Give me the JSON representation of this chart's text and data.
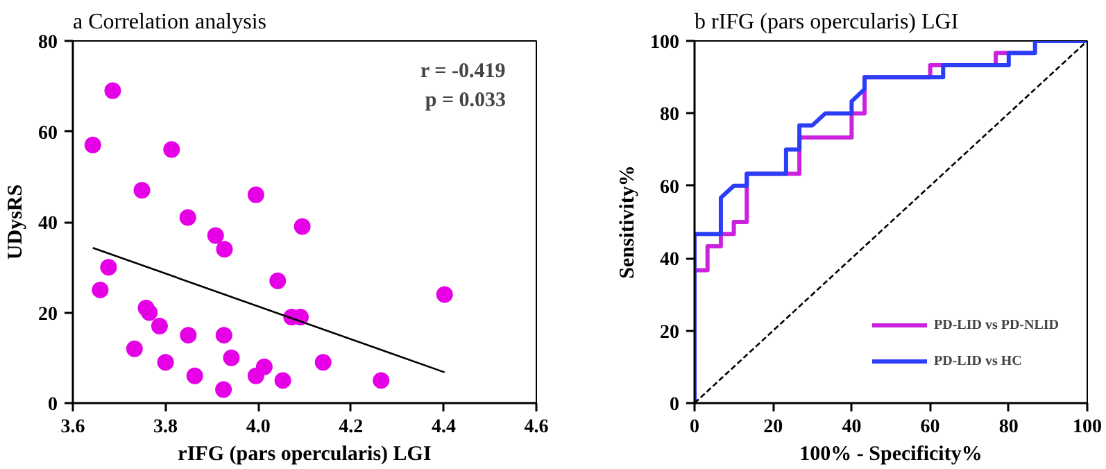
{
  "chart_data": [
    {
      "type": "scatter",
      "title": "a Correlation analysis",
      "xlabel": "rIFG (pars opercularis) LGI",
      "ylabel": "UDysRS",
      "xlim": [
        3.6,
        4.6
      ],
      "ylim": [
        0,
        80
      ],
      "xticks": [
        {
          "value": 3.6,
          "label": "3.6"
        },
        {
          "value": 3.8,
          "label": "3.8"
        },
        {
          "value": 4.0,
          "label": "4.0"
        },
        {
          "value": 4.2,
          "label": "4.2"
        },
        {
          "value": 4.4,
          "label": "4.4"
        },
        {
          "value": 4.6,
          "label": "4.6"
        }
      ],
      "yticks": [
        0,
        20,
        40,
        60,
        80
      ],
      "grid": false,
      "marker": "circle",
      "annotations": [
        "r = -0.419",
        "p = 0.033"
      ],
      "series": [
        {
          "type": "scatter",
          "color": "#e600e6",
          "x": [
            3.643,
            3.686,
            3.813,
            3.749,
            3.848,
            3.995,
            3.908,
            3.927,
            4.095,
            3.677,
            3.659,
            4.042,
            4.402,
            3.758,
            3.765,
            3.787,
            4.072,
            4.091,
            3.733,
            3.849,
            3.926,
            3.942,
            3.8,
            3.863,
            3.925,
            3.995,
            4.013,
            4.053,
            4.14,
            4.265
          ],
          "values": [
            57,
            69,
            56,
            47,
            41,
            46,
            37,
            34,
            39,
            30,
            25,
            27,
            24,
            21,
            20,
            17,
            19,
            19,
            12,
            15,
            15,
            10,
            9,
            6,
            3,
            6,
            8,
            5,
            9,
            5
          ]
        },
        {
          "type": "line",
          "color": "#000000",
          "marker": "none",
          "x": [
            3.643,
            4.402
          ],
          "values": [
            34.3,
            6.8
          ]
        }
      ]
    },
    {
      "type": "line",
      "title": "b rIFG (pars opercularis) LGI",
      "xlabel": "100% - Specificity%",
      "ylabel": "Sensitivity%",
      "xlim": [
        0,
        100
      ],
      "ylim": [
        0,
        100
      ],
      "xticks": [
        0,
        20,
        40,
        60,
        80,
        100
      ],
      "yticks": [
        0,
        20,
        40,
        60,
        80,
        100
      ],
      "grid": false,
      "legend": "bottom right",
      "marker": "none",
      "line_style": "solid",
      "series": [
        {
          "name": "PD-LID vs PD-NLID",
          "color": "#cc22dd",
          "x": [
            0,
            0,
            3.3,
            3.3,
            6.7,
            6.7,
            10,
            10,
            13.3,
            13.3,
            26.7,
            26.7,
            40,
            40,
            43.3,
            43.3,
            60,
            60,
            76.7,
            76.7,
            86.7
          ],
          "values": [
            0,
            36.7,
            36.7,
            43.3,
            43.3,
            46.7,
            46.7,
            50,
            50,
            63.3,
            63.3,
            73.3,
            73.3,
            80,
            80,
            90,
            90,
            93.3,
            93.3,
            96.7,
            96.7
          ]
        },
        {
          "name": "PD-LID vs HC",
          "color": "#2b3ef5",
          "x": [
            0,
            0,
            6.7,
            6.7,
            10,
            13.3,
            13.3,
            23.3,
            23.3,
            26.7,
            26.7,
            30,
            33.3,
            40,
            40,
            43.3,
            43.3,
            63.3,
            63.3,
            80,
            80,
            86.7,
            86.7,
            100
          ],
          "values": [
            0,
            46.7,
            46.7,
            56.7,
            60,
            60,
            63.3,
            63.3,
            70,
            70,
            76.7,
            76.7,
            80,
            80,
            83.3,
            86.7,
            90,
            90,
            93.3,
            93.3,
            96.7,
            96.7,
            100,
            100
          ]
        },
        {
          "color": "#000000",
          "line_style": "dashed",
          "x": [
            0,
            100
          ],
          "values": [
            0,
            100
          ]
        }
      ]
    }
  ]
}
